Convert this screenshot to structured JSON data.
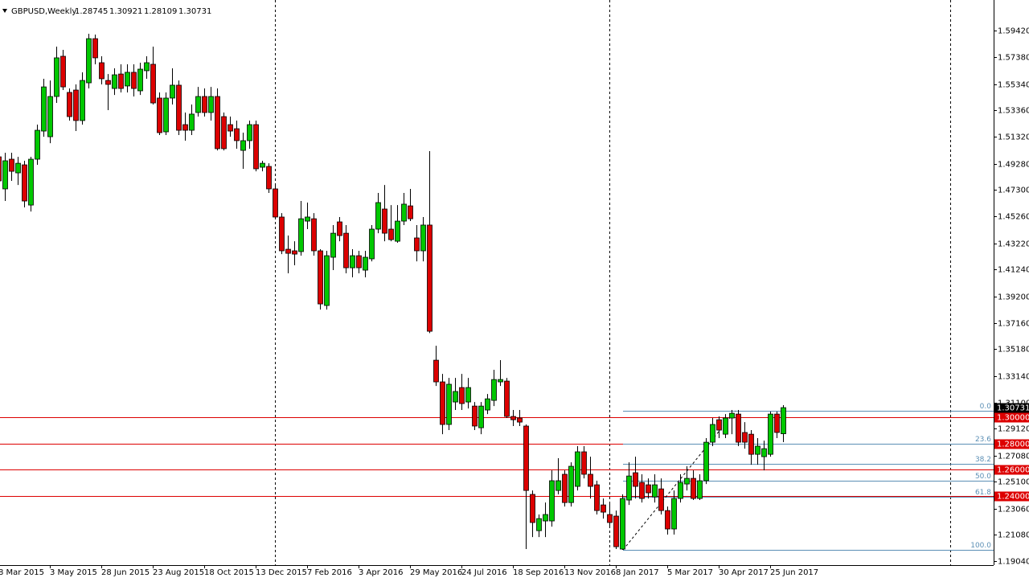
{
  "chart_data": {
    "type": "candlestick",
    "title": "GBPUSD,Weekly",
    "up_color": "#00c800",
    "down_color": "#dc0000",
    "categories": [
      "8 Mar 2015",
      null,
      null,
      null,
      null,
      null,
      null,
      null,
      "3 May 2015",
      null,
      null,
      null,
      null,
      null,
      null,
      null,
      "28 Jun 2015",
      null,
      null,
      null,
      null,
      null,
      null,
      null,
      "23 Aug 2015",
      null,
      null,
      null,
      null,
      null,
      null,
      null,
      "18 Oct 2015",
      null,
      null,
      null,
      null,
      null,
      null,
      null,
      "13 Dec 2015",
      null,
      null,
      null,
      null,
      null,
      null,
      null,
      "7 Feb 2016",
      null,
      null,
      null,
      null,
      null,
      null,
      null,
      "3 Apr 2016",
      null,
      null,
      null,
      null,
      null,
      null,
      null,
      "29 May 2016",
      null,
      null,
      null,
      null,
      null,
      null,
      null,
      "24 Jul 2016",
      null,
      null,
      null,
      null,
      null,
      null,
      null,
      "18 Sep 2016",
      null,
      null,
      null,
      null,
      null,
      null,
      null,
      "13 Nov 2016",
      null,
      null,
      null,
      null,
      null,
      null,
      null,
      "8 Jan 2017",
      null,
      null,
      null,
      null,
      null,
      null,
      null,
      "5 Mar 2017",
      null,
      null,
      null,
      null,
      null,
      null,
      null,
      "30 Apr 2017",
      null,
      null,
      null,
      null,
      null,
      null,
      null,
      "25 Jun 2017",
      null,
      null
    ],
    "open": [
      1.4981,
      1.4737,
      1.4963,
      1.4859,
      1.492,
      1.4614,
      1.4963,
      1.5177,
      1.5134,
      1.544,
      1.5746,
      1.5471,
      1.5489,
      1.5257,
      1.5544,
      1.588,
      1.5697,
      1.5562,
      1.5501,
      1.5611,
      1.552,
      1.5624,
      1.5483,
      1.5636,
      1.5685,
      1.5428,
      1.5171,
      1.5428,
      1.5526,
      1.5226,
      1.5183,
      1.5318,
      1.544,
      1.5318,
      1.544,
      1.5287,
      1.5226,
      1.5195,
      1.503,
      1.5104,
      1.5226,
      1.4902,
      1.4908,
      1.4737,
      1.4523,
      1.4278,
      1.4266,
      1.426,
      1.4492,
      1.451,
      1.4266,
      1.385,
      1.4217,
      1.4486,
      1.44,
      1.4137,
      1.4229,
      1.4119,
      1.4205,
      1.4431,
      1.4584,
      1.4431,
      1.4339,
      1.4492,
      1.4608,
      1.4364,
      1.4266,
      1.4462,
      1.3434,
      1.3269,
      1.2945,
      1.3116,
      1.3226,
      1.3116,
      1.3085,
      1.292,
      1.3055,
      1.3128,
      1.3269,
      1.3275,
      1.3006,
      1.2994,
      1.2933,
      1.2413,
      1.2137,
      1.2211,
      1.2211,
      1.2443,
      1.2566,
      1.2351,
      1.2474,
      1.2737,
      1.2566,
      1.2486,
      1.2333,
      1.226,
      1.2248,
      1.1997,
      1.237,
      1.2578,
      1.2504,
      1.2486,
      1.2394,
      1.2455,
      1.229,
      1.215,
      1.2382,
      1.2492,
      1.2535,
      1.2382,
      1.2517,
      1.281,
      1.2981,
      1.2871,
      1.2994,
      1.3024,
      1.2884,
      1.2871,
      1.2718,
      1.27,
      1.2718,
      1.3024,
      1.28745
    ],
    "high": [
      1.5043,
      1.5012,
      1.5012,
      1.4981,
      1.4951,
      1.4981,
      1.5226,
      1.5575,
      1.5562,
      1.5819,
      1.5795,
      1.5501,
      1.5532,
      1.5624,
      1.5917,
      1.5911,
      1.5746,
      1.5611,
      1.5654,
      1.5685,
      1.5685,
      1.5685,
      1.5697,
      1.5746,
      1.5819,
      1.5471,
      1.5471,
      1.5654,
      1.5562,
      1.5318,
      1.5379,
      1.5513,
      1.5501,
      1.5513,
      1.5501,
      1.5318,
      1.5287,
      1.5257,
      1.5165,
      1.5257,
      1.5257,
      1.4951,
      1.4932,
      1.4767,
      1.4553,
      1.4382,
      1.4339,
      1.4645,
      1.4633,
      1.4553,
      1.4278,
      1.4266,
      1.4462,
      1.4523,
      1.4462,
      1.4278,
      1.4266,
      1.4266,
      1.4462,
      1.4706,
      1.4767,
      1.4614,
      1.4614,
      1.4706,
      1.4737,
      1.4462,
      1.4523,
      1.5024,
      1.3544,
      1.333,
      1.3299,
      1.3299,
      1.333,
      1.3299,
      1.3116,
      1.3116,
      1.3177,
      1.3361,
      1.3434,
      1.3299,
      1.3055,
      1.3055,
      1.2945,
      1.2443,
      1.226,
      1.2351,
      1.2596,
      1.2688,
      1.2596,
      1.2657,
      1.278,
      1.278,
      1.27,
      1.2517,
      1.2382,
      1.2351,
      1.229,
      1.2413,
      1.2657,
      1.27,
      1.2566,
      1.2535,
      1.2566,
      1.2535,
      1.2321,
      1.2443,
      1.2566,
      1.2627,
      1.2596,
      1.2566,
      1.2841,
      1.2994,
      1.3006,
      1.3024,
      1.3055,
      1.3055,
      1.2963,
      1.2902,
      1.2841,
      1.2822,
      1.3043,
      1.3043,
      1.30921
    ],
    "low": [
      1.4706,
      1.4645,
      1.4798,
      1.4767,
      1.4596,
      1.4565,
      1.492,
      1.5134,
      1.5085,
      1.5391,
      1.5489,
      1.5257,
      1.5177,
      1.5226,
      1.5501,
      1.5685,
      1.5532,
      1.5336,
      1.5452,
      1.5471,
      1.5471,
      1.544,
      1.5452,
      1.5575,
      1.5379,
      1.5147,
      1.5147,
      1.5379,
      1.5147,
      1.5104,
      1.5147,
      1.5287,
      1.5287,
      1.5257,
      1.503,
      1.503,
      1.5134,
      1.5043,
      1.489,
      1.5043,
      1.4871,
      1.4871,
      1.4706,
      1.451,
      1.4241,
      1.4095,
      1.4156,
      1.4229,
      1.4431,
      1.4229,
      1.3819,
      1.3819,
      1.4119,
      1.4339,
      1.4095,
      1.4064,
      1.4095,
      1.4064,
      1.4186,
      1.44,
      1.4339,
      1.4339,
      1.4327,
      1.4462,
      1.4492,
      1.4186,
      1.4186,
      1.364,
      1.3238,
      1.2871,
      1.2902,
      1.3055,
      1.3055,
      1.3067,
      1.2902,
      1.2871,
      1.3024,
      1.3085,
      1.3238,
      1.2994,
      1.2933,
      1.2933,
      1.1997,
      1.2088,
      1.2088,
      1.2088,
      1.2168,
      1.2413,
      1.2321,
      1.2321,
      1.2443,
      1.2535,
      1.2382,
      1.226,
      1.2229,
      1.2168,
      1.1997,
      1.1991,
      1.2333,
      1.2382,
      1.2351,
      1.2382,
      1.2351,
      1.226,
      1.2107,
      1.2107,
      1.2351,
      1.2443,
      1.237,
      1.237,
      1.2492,
      1.278,
      1.2841,
      1.2841,
      1.2871,
      1.278,
      1.2761,
      1.2639,
      1.2639,
      1.2596,
      1.27,
      1.2841,
      1.28109
    ],
    "close": [
      1.4798,
      1.4951,
      1.4871,
      1.4932,
      1.4645,
      1.4963,
      1.5183,
      1.5513,
      1.544,
      1.5734,
      1.5513,
      1.5287,
      1.5257,
      1.5562,
      1.588,
      1.5734,
      1.5575,
      1.5532,
      1.5605,
      1.5501,
      1.5624,
      1.5501,
      1.5648,
      1.5697,
      1.5391,
      1.5165,
      1.5428,
      1.5526,
      1.5183,
      1.5183,
      1.5306,
      1.544,
      1.5318,
      1.544,
      1.5043,
      1.5043,
      1.5177,
      1.5104,
      1.5104,
      1.5226,
      1.489,
      1.4932,
      1.4737,
      1.4523,
      1.4266,
      1.4247,
      1.4241,
      1.451,
      1.4523,
      1.4266,
      1.3862,
      1.4229,
      1.44,
      1.4382,
      1.4137,
      1.4229,
      1.4137,
      1.4217,
      1.4431,
      1.4633,
      1.44,
      1.4351,
      1.4492,
      1.4621,
      1.451,
      1.4266,
      1.4462,
      1.3654,
      1.3269,
      1.2945,
      1.3251,
      1.3196,
      1.3104,
      1.3226,
      1.2933,
      1.3085,
      1.314,
      1.3287,
      1.3287,
      1.3006,
      1.2981,
      1.2963,
      1.2443,
      1.2199,
      1.2229,
      1.226,
      1.2517,
      1.2517,
      1.2351,
      1.2627,
      1.2737,
      1.2566,
      1.2474,
      1.229,
      1.2278,
      1.2199,
      1.2015,
      1.2382,
      1.2553,
      1.2474,
      1.2382,
      1.2425,
      1.2486,
      1.229,
      1.215,
      1.2382,
      1.2504,
      1.2535,
      1.2382,
      1.2517,
      1.281,
      1.2945,
      1.2902,
      1.2994,
      1.303,
      1.281,
      1.281,
      1.2718,
      1.278,
      1.2761,
      1.3024,
      1.2884,
      1.30731
    ],
    "ylim": [
      1.1875,
      1.6174
    ],
    "yticks": [
      {
        "value": 1.5942,
        "label": "1.59420"
      },
      {
        "value": 1.5738,
        "label": "1.57380"
      },
      {
        "value": 1.5534,
        "label": "1.55340"
      },
      {
        "value": 1.5336,
        "label": "1.53360"
      },
      {
        "value": 1.5132,
        "label": "1.51320"
      },
      {
        "value": 1.4928,
        "label": "1.49280"
      },
      {
        "value": 1.473,
        "label": "1.47300"
      },
      {
        "value": 1.4526,
        "label": "1.45260"
      },
      {
        "value": 1.4322,
        "label": "1.43220"
      },
      {
        "value": 1.4124,
        "label": "1.41240"
      },
      {
        "value": 1.392,
        "label": "1.39200"
      },
      {
        "value": 1.3716,
        "label": "1.37160"
      },
      {
        "value": 1.3518,
        "label": "1.35180"
      },
      {
        "value": 1.3314,
        "label": "1.33140"
      },
      {
        "value": 1.311,
        "label": "1.31100"
      },
      {
        "value": 1.2912,
        "label": "1.29120"
      },
      {
        "value": 1.2708,
        "label": "1.27080"
      },
      {
        "value": 1.251,
        "label": "1.25100"
      },
      {
        "value": 1.2306,
        "label": "1.23060"
      },
      {
        "value": 1.2108,
        "label": "1.21080"
      },
      {
        "value": 1.1904,
        "label": "1.19040"
      }
    ],
    "levels": {
      "color": "#dd0000",
      "lines": [
        {
          "value": 1.3,
          "label": "1.30000"
        },
        {
          "value": 1.28,
          "label": "1.28000"
        },
        {
          "value": 1.26,
          "label": "1.26000"
        },
        {
          "value": 1.24,
          "label": "1.24000"
        }
      ]
    },
    "fibonacci": {
      "color": "#5b8fb5",
      "levels": [
        {
          "value": 1.3049,
          "label": "0.0"
        },
        {
          "value": 1.2799,
          "label": "23.6"
        },
        {
          "value": 1.2645,
          "label": "38.2"
        },
        {
          "value": 1.252,
          "label": "50.0"
        },
        {
          "value": 1.2395,
          "label": "61.8"
        },
        {
          "value": 1.1991,
          "label": "100.0"
        }
      ]
    }
  }
}
